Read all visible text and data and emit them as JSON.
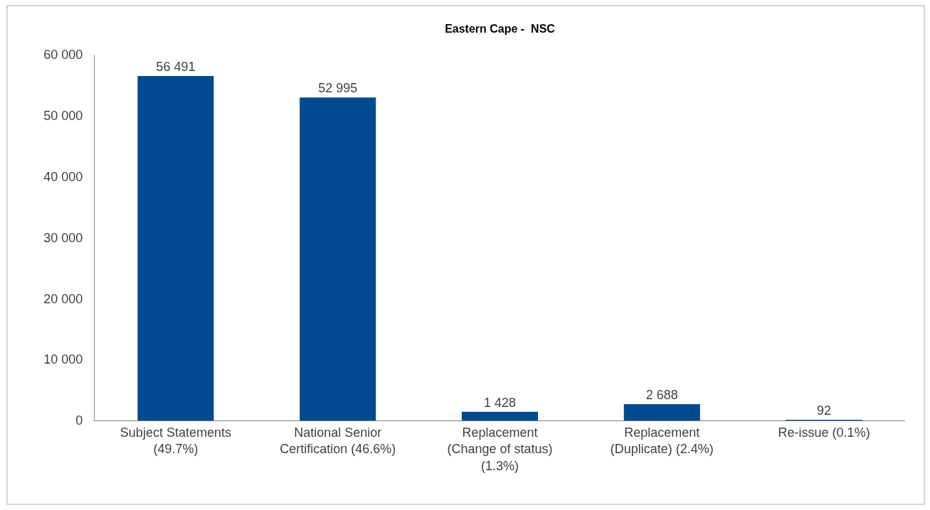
{
  "chart_data": {
    "type": "bar",
    "title": "Eastern Cape -  NSC",
    "categories": [
      "Subject Statements (49.7%)",
      "National Senior Certification (46.6%)",
      "Replacement (Change of status) (1.3%)",
      "Replacement (Duplicate) (2.4%)",
      "Re-issue (0.1%)"
    ],
    "values": [
      56491,
      52995,
      1428,
      2688,
      92
    ],
    "value_labels": [
      "56 491",
      "52 995",
      "1 428",
      "2 688",
      "92"
    ],
    "color": "#004a8f",
    "ylim": [
      0,
      60000
    ],
    "yticks": [
      0,
      {
        "value": 10000,
        "label": "10 000"
      },
      {
        "value": 20000,
        "label": "20 000"
      },
      {
        "value": 30000,
        "label": "30 000"
      },
      {
        "value": 40000,
        "label": "40 000"
      },
      {
        "value": 50000,
        "label": "50 000"
      },
      {
        "value": 60000,
        "label": "60 000"
      }
    ]
  }
}
